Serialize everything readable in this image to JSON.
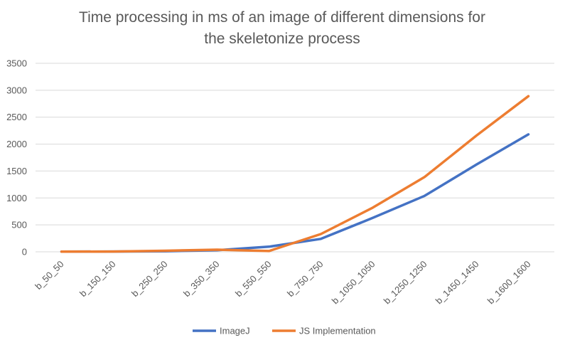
{
  "chart_data": {
    "type": "line",
    "title_line1": "Time processing in ms of an image of different dimensions for",
    "title_line2": "the skeletonize process",
    "xlabel": "",
    "ylabel": "",
    "ylim": [
      0,
      3500
    ],
    "yticks": [
      "0",
      "500",
      "1000",
      "1500",
      "2000",
      "2500",
      "3000",
      "3500"
    ],
    "grid": true,
    "legend_position": "bottom",
    "categories": [
      "b_50_50",
      "b_150_150",
      "b_250_250",
      "b_350_350",
      "b_550_550",
      "b_750_750",
      "b_1050_1050",
      "b_1250_1250",
      "b_1450_1450",
      "b_1600_1600"
    ],
    "series": [
      {
        "name": "ImageJ",
        "color": "#4472C4",
        "values": [
          2,
          5,
          10,
          30,
          95,
          240,
          630,
          1040,
          1620,
          2180
        ]
      },
      {
        "name": "JS Implementation",
        "color": "#ED7D31",
        "values": [
          2,
          5,
          20,
          40,
          15,
          330,
          820,
          1390,
          2160,
          2890
        ]
      }
    ]
  }
}
